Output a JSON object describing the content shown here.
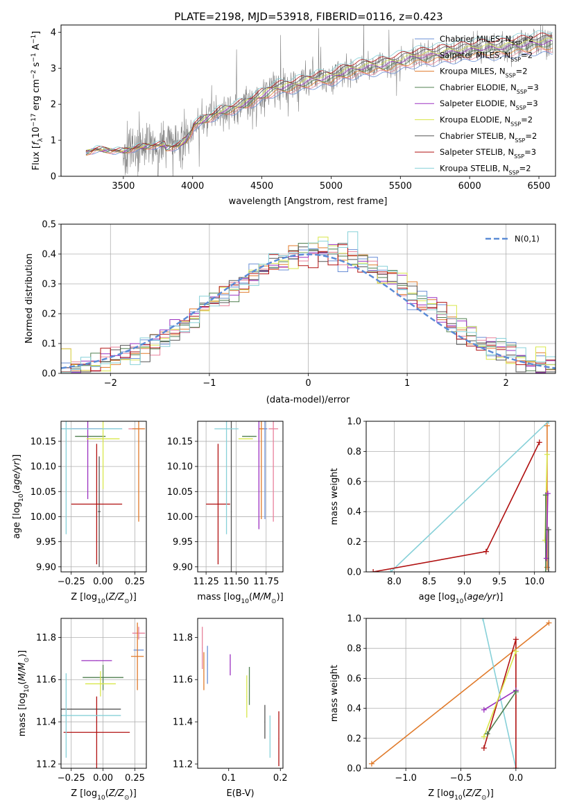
{
  "title": "PLATE=2198, MJD=53918, FIBERID=0116, z=0.423",
  "colors": {
    "Chabrier MILES": "#6a8fd6",
    "Salpeter MILES": "#e8809a",
    "Kroupa MILES": "#e07a2a",
    "Chabrier ELODIE": "#4f7f4f",
    "Salpeter ELODIE": "#9b30c0",
    "Kroupa ELODIE": "#d8e64a",
    "Chabrier STELIB": "#555555",
    "Salpeter STELIB": "#b01010",
    "Kroupa STELIB": "#86d0d8"
  },
  "chart_data": [
    {
      "type": "line",
      "xlabel": "wavelength [Angstrom, rest frame]",
      "ylabel": "Flux [f_λ 10^-17 erg cm^-2 s^-1 A^-1]",
      "xlim": [
        3050,
        6620
      ],
      "ylim": [
        0,
        4.2
      ],
      "xticks": [
        3500,
        4000,
        4500,
        5000,
        5500,
        6000,
        6500
      ],
      "yticks": [
        0,
        1,
        2,
        3,
        4
      ],
      "grid": false,
      "legend_position": "right",
      "legend": [
        {
          "model": "Chabrier MILES",
          "nssp": "2"
        },
        {
          "model": "Salpeter MILES",
          "nssp": "2"
        },
        {
          "model": "Kroupa MILES",
          "nssp": "2"
        },
        {
          "model": "Chabrier ELODIE",
          "nssp": "3"
        },
        {
          "model": "Salpeter ELODIE",
          "nssp": "3"
        },
        {
          "model": "Kroupa ELODIE",
          "nssp": "2"
        },
        {
          "model": "Chabrier STELIB",
          "nssp": "2"
        },
        {
          "model": "Salpeter STELIB",
          "nssp": "3"
        },
        {
          "model": "Kroupa STELIB",
          "nssp": "2"
        }
      ],
      "continuum_x": [
        3230,
        3300,
        3400,
        3500,
        3600,
        3700,
        3800,
        3900,
        3950,
        4000,
        4100,
        4200,
        4300,
        4400,
        4500,
        4600,
        4700,
        4800,
        4900,
        5000,
        5100,
        5200,
        5300,
        5400,
        5500,
        5600,
        5700,
        5800,
        5900,
        6000,
        6100,
        6200,
        6300,
        6400,
        6500,
        6600
      ],
      "continuum_y": [
        0.65,
        0.75,
        0.72,
        0.7,
        0.8,
        0.85,
        0.88,
        0.95,
        1.1,
        1.4,
        1.6,
        1.8,
        1.9,
        2.05,
        2.25,
        2.45,
        2.5,
        2.6,
        2.7,
        2.75,
        2.9,
        3.0,
        3.05,
        3.1,
        3.2,
        3.3,
        3.35,
        3.4,
        3.45,
        3.5,
        3.55,
        3.55,
        3.6,
        3.65,
        3.7,
        3.72
      ]
    },
    {
      "type": "line",
      "xlabel": "(data-model)/error",
      "ylabel": "Normed distribution",
      "xlim": [
        -2.5,
        2.5
      ],
      "ylim": [
        0,
        0.5
      ],
      "xticks": [
        -2,
        -1,
        0,
        1,
        2
      ],
      "yticks": [
        0.0,
        0.1,
        0.2,
        0.3,
        0.4,
        0.5
      ],
      "grid": true,
      "legend": "N(0,1)",
      "legend_position": "top-right",
      "bin_width": 0.1,
      "reference_curve": "normal pdf, mean 0, sigma 1"
    },
    {
      "type": "scatter",
      "xlabel": "Z [log10(Z/Z⊙)]",
      "ylabel": "age [log10(age/yr)]",
      "xlim": [
        -0.33,
        0.34
      ],
      "ylim": [
        9.89,
        10.19
      ],
      "xticks": [
        -0.25,
        0.0,
        0.25
      ],
      "yticks": [
        9.9,
        9.95,
        10.0,
        10.05,
        10.1,
        10.15
      ],
      "grid": true,
      "points": [
        {
          "model": "Chabrier MILES",
          "x": -0.29,
          "xerr": 0.44,
          "y": 10.175,
          "yerr": 0.0
        },
        {
          "model": "Salpeter MILES",
          "x": 0.26,
          "xerr": 0.06,
          "y": 10.175,
          "yerr": 0.0
        },
        {
          "model": "Kroupa MILES",
          "x": 0.28,
          "xerr": 0.05,
          "y": 10.175,
          "yerr": 0.185
        },
        {
          "model": "Chabrier ELODIE",
          "x": -0.1,
          "xerr": 0.12,
          "y": 10.16,
          "yerr": 0.0
        },
        {
          "model": "Salpeter ELODIE",
          "x": -0.12,
          "xerr": 0.12,
          "y": 10.175,
          "yerr": 0.14
        },
        {
          "model": "Kroupa ELODIE",
          "x": 0.0,
          "xerr": 0.13,
          "y": 10.155,
          "yerr": 0.1
        },
        {
          "model": "Chabrier STELIB",
          "x": -0.03,
          "xerr": 0.01,
          "y": 10.01,
          "yerr": 0.11
        },
        {
          "model": "Salpeter STELIB",
          "x": -0.05,
          "xerr": 0.2,
          "y": 10.025,
          "yerr": 0.12
        },
        {
          "model": "Kroupa STELIB",
          "x": -0.29,
          "xerr": 0.44,
          "y": 10.175,
          "yerr": 0.21
        }
      ]
    },
    {
      "type": "scatter",
      "xlabel": "mass [log10(M/M⊙)]",
      "ylabel": "",
      "xlim": [
        11.18,
        11.89
      ],
      "ylim": [
        9.89,
        10.19
      ],
      "xticks": [
        11.25,
        11.5,
        11.75
      ],
      "yticks": [
        9.9,
        9.95,
        10.0,
        10.05,
        10.1,
        10.15
      ],
      "grid": true,
      "points": [
        {
          "model": "Chabrier MILES",
          "x": 11.74,
          "xerr": 0.02,
          "y": 10.175,
          "yerr": 0.18
        },
        {
          "model": "Salpeter MILES",
          "x": 11.81,
          "xerr": 0.04,
          "y": 10.175,
          "yerr": 0.185
        },
        {
          "model": "Kroupa MILES",
          "x": 11.71,
          "xerr": 0.02,
          "y": 10.175,
          "yerr": 0.18
        },
        {
          "model": "Chabrier ELODIE",
          "x": 11.61,
          "xerr": 0.06,
          "y": 10.16,
          "yerr": 0.0
        },
        {
          "model": "Salpeter ELODIE",
          "x": 11.69,
          "xerr": 0.0,
          "y": 10.175,
          "yerr": 0.2
        },
        {
          "model": "Kroupa ELODIE",
          "x": 11.58,
          "xerr": 0.06,
          "y": 10.155,
          "yerr": 0.0
        },
        {
          "model": "Chabrier STELIB",
          "x": 11.46,
          "xerr": 0.0,
          "y": 10.01,
          "yerr": 0.18
        },
        {
          "model": "Salpeter STELIB",
          "x": 11.35,
          "xerr": 0.1,
          "y": 10.025,
          "yerr": 0.12
        },
        {
          "model": "Kroupa STELIB",
          "x": 11.42,
          "xerr": 0.1,
          "y": 10.175,
          "yerr": 0.21
        }
      ]
    },
    {
      "type": "line",
      "xlabel": "age [log10(age/yr)]",
      "ylabel": "mass weight",
      "xlim": [
        7.6,
        10.3
      ],
      "ylim": [
        0.0,
        1.0
      ],
      "xticks": [
        8.0,
        8.5,
        9.0,
        9.5,
        10.0
      ],
      "yticks": [
        0.0,
        0.2,
        0.4,
        0.6,
        0.8,
        1.0
      ],
      "grid": true,
      "series": [
        {
          "model": "Kroupa STELIB",
          "x": [
            7.95,
            10.2
          ],
          "y": [
            0.0,
            1.0
          ]
        },
        {
          "model": "Salpeter STELIB",
          "x": [
            7.7,
            9.31,
            10.07
          ],
          "y": [
            0.0,
            0.135,
            0.86
          ]
        },
        {
          "model": "Kroupa MILES",
          "x": [
            10.18,
            10.18
          ],
          "y": [
            0.03,
            0.97
          ]
        },
        {
          "model": "Kroupa ELODIE",
          "x": [
            10.15,
            10.18
          ],
          "y": [
            0.21,
            0.78
          ]
        },
        {
          "model": "Chabrier ELODIE",
          "x": [
            10.16,
            10.16
          ],
          "y": [
            0.0,
            0.51
          ]
        },
        {
          "model": "Salpeter ELODIE",
          "x": [
            10.17,
            10.19
          ],
          "y": [
            0.09,
            0.52
          ]
        },
        {
          "model": "Chabrier STELIB",
          "x": [
            10.2,
            10.2
          ],
          "y": [
            0.0,
            0.28
          ]
        }
      ]
    },
    {
      "type": "scatter",
      "xlabel": "Z [log10(Z/Z⊙)]",
      "ylabel": "mass [log10(M/M⊙)]",
      "xlim": [
        -0.33,
        0.34
      ],
      "ylim": [
        11.18,
        11.89
      ],
      "xticks": [
        -0.25,
        0.0,
        0.25
      ],
      "yticks": [
        11.2,
        11.4,
        11.6,
        11.8
      ],
      "grid": true,
      "points": [
        {
          "model": "Chabrier MILES",
          "x": 0.28,
          "xerr": 0.04,
          "y": 11.74,
          "yerr": 0.0
        },
        {
          "model": "Salpeter MILES",
          "x": 0.28,
          "xerr": 0.05,
          "y": 11.82,
          "yerr": 0.03
        },
        {
          "model": "Kroupa MILES",
          "x": 0.27,
          "xerr": 0.05,
          "y": 11.71,
          "yerr": 0.16
        },
        {
          "model": "Chabrier ELODIE",
          "x": 0.0,
          "xerr": 0.16,
          "y": 11.61,
          "yerr": 0.06
        },
        {
          "model": "Salpeter ELODIE",
          "x": -0.05,
          "xerr": 0.12,
          "y": 11.69,
          "yerr": 0.0
        },
        {
          "model": "Kroupa ELODIE",
          "x": -0.02,
          "xerr": 0.12,
          "y": 11.58,
          "yerr": 0.06
        },
        {
          "model": "Chabrier STELIB",
          "x": -0.29,
          "xerr": 0.43,
          "y": 11.46,
          "yerr": 0.0
        },
        {
          "model": "Salpeter STELIB",
          "x": -0.05,
          "xerr": 0.26,
          "y": 11.35,
          "yerr": 0.17
        },
        {
          "model": "Kroupa STELIB",
          "x": -0.29,
          "xerr": 0.43,
          "y": 11.43,
          "yerr": 0.2
        }
      ]
    },
    {
      "type": "scatter",
      "xlabel": "E(B-V)",
      "ylabel": "",
      "xlim": [
        0.04,
        0.205
      ],
      "ylim": [
        11.18,
        11.89
      ],
      "xticks": [
        0.1,
        0.2
      ],
      "yticks": [
        11.2,
        11.4,
        11.6,
        11.8
      ],
      "grid": false,
      "points": [
        {
          "model": "Salpeter MILES",
          "x": 0.049,
          "y": 11.75,
          "yerr": 0.1
        },
        {
          "model": "Kroupa MILES",
          "x": 0.052,
          "y": 11.64,
          "yerr": 0.09
        },
        {
          "model": "Chabrier MILES",
          "x": 0.059,
          "y": 11.67,
          "yerr": 0.09
        },
        {
          "model": "Salpeter ELODIE",
          "x": 0.103,
          "y": 11.67,
          "yerr": 0.05
        },
        {
          "model": "Kroupa ELODIE",
          "x": 0.135,
          "y": 11.52,
          "yerr": 0.1
        },
        {
          "model": "Chabrier ELODIE",
          "x": 0.14,
          "y": 11.57,
          "yerr": 0.09
        },
        {
          "model": "Chabrier STELIB",
          "x": 0.17,
          "y": 11.4,
          "yerr": 0.08
        },
        {
          "model": "Kroupa STELIB",
          "x": 0.18,
          "y": 11.33,
          "yerr": 0.1
        },
        {
          "model": "Salpeter STELIB",
          "x": 0.197,
          "y": 11.32,
          "yerr": 0.13
        }
      ]
    },
    {
      "type": "line",
      "xlabel": "Z [log10(Z/Z⊙)]",
      "ylabel": "mass weight",
      "xlim": [
        -1.36,
        0.36
      ],
      "ylim": [
        0.0,
        1.0
      ],
      "xticks": [
        -1.0,
        -0.5,
        0.0
      ],
      "yticks": [
        0.0,
        0.2,
        0.4,
        0.6,
        0.8,
        1.0
      ],
      "grid": true,
      "series": [
        {
          "model": "Kroupa MILES",
          "x": [
            -1.31,
            0.3
          ],
          "y": [
            0.03,
            0.97
          ]
        },
        {
          "model": "Kroupa STELIB",
          "x": [
            -0.3,
            0.0
          ],
          "y": [
            1.0,
            0.0
          ]
        },
        {
          "model": "Salpeter STELIB",
          "x": [
            -0.29,
            0.0,
            0.0
          ],
          "y": [
            0.135,
            0.86,
            0.0
          ]
        },
        {
          "model": "Salpeter ELODIE",
          "x": [
            -0.29,
            0.0
          ],
          "y": [
            0.39,
            0.52
          ]
        },
        {
          "model": "Kroupa ELODIE",
          "x": [
            -0.29,
            0.0
          ],
          "y": [
            0.21,
            0.78
          ]
        },
        {
          "model": "Chabrier ELODIE",
          "x": [
            -0.26,
            0.0
          ],
          "y": [
            0.23,
            0.51
          ]
        }
      ]
    }
  ]
}
